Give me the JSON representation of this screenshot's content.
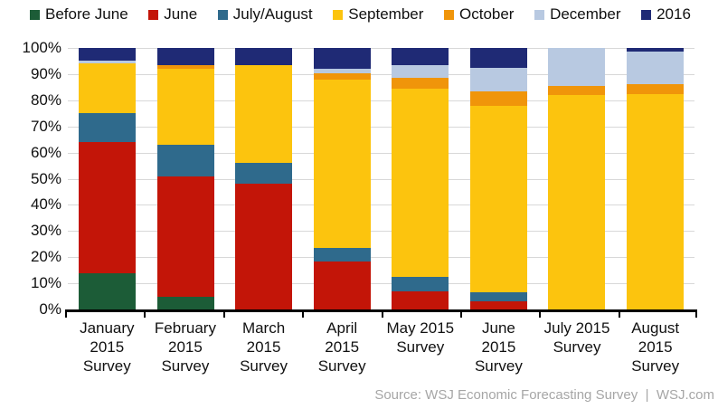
{
  "chart_data": {
    "type": "bar",
    "variant": "stacked-100-percent",
    "title": "",
    "xlabel": "",
    "ylabel": "",
    "ylim": [
      0,
      100
    ],
    "grid": "horizontal",
    "legend_position": "top",
    "y_ticks": [
      "0%",
      "10%",
      "20%",
      "30%",
      "40%",
      "50%",
      "60%",
      "70%",
      "80%",
      "90%",
      "100%"
    ],
    "categories": [
      [
        "January",
        "2015",
        "Survey"
      ],
      [
        "February",
        "2015",
        "Survey"
      ],
      [
        "March",
        "2015",
        "Survey"
      ],
      [
        "April",
        "2015",
        "Survey"
      ],
      [
        "May 2015",
        "Survey"
      ],
      [
        "June",
        "2015",
        "Survey"
      ],
      [
        "July 2015",
        "Survey"
      ],
      [
        "August",
        "2015",
        "Survey"
      ]
    ],
    "series": [
      {
        "name": "Before June",
        "color": "#1c5c37",
        "values": [
          14,
          5,
          0,
          0,
          0,
          0,
          0,
          0
        ]
      },
      {
        "name": "June",
        "color": "#c31508",
        "values": [
          50,
          46,
          48,
          18.5,
          7,
          3,
          0,
          0
        ]
      },
      {
        "name": "July/August",
        "color": "#2f6a8c",
        "values": [
          11,
          12,
          8,
          5,
          5.5,
          3.5,
          0,
          0
        ]
      },
      {
        "name": "September",
        "color": "#fcc40e",
        "values": [
          19,
          29,
          37.5,
          64.5,
          72,
          71.5,
          82,
          82.5
        ]
      },
      {
        "name": "October",
        "color": "#f0950a",
        "values": [
          0,
          1.5,
          0,
          2.5,
          4,
          5.5,
          3.5,
          3.5
        ]
      },
      {
        "name": "December",
        "color": "#b8c9e1",
        "values": [
          1,
          0,
          0,
          1.5,
          5,
          9,
          14.5,
          12.5
        ]
      },
      {
        "name": "2016",
        "color": "#1f2a75",
        "values": [
          5,
          6.5,
          6.5,
          8,
          6.5,
          7.5,
          0,
          1.5
        ]
      }
    ],
    "source": "Source: WSJ Economic Forecasting Survey  |  WSJ.com"
  }
}
